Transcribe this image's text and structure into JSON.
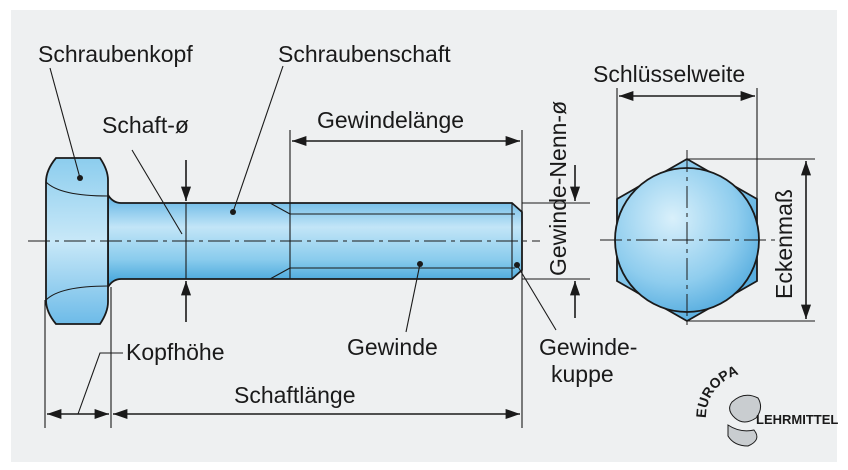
{
  "labels": {
    "schraubenkopf": "Schraubenkopf",
    "schraubenschaft": "Schraubenschaft",
    "schaft_d": "Schaft-ø",
    "gewindelaenge": "Gewindelänge",
    "gewinde_nenn_d": "Gewinde-Nenn-ø",
    "schluesselweite": "Schlüsselweite",
    "eckenmass": "Eckenmaß",
    "kopfhoehe": "Kopfhöhe",
    "gewinde": "Gewinde",
    "gewindekuppe_1": "Gewinde-",
    "gewindekuppe_2": "kuppe",
    "schaftlaenge": "Schaftlänge"
  },
  "logo": {
    "top": "EUROPA",
    "bottom": "LEHRMITTEL"
  },
  "colors": {
    "background": "#eef0f1",
    "steel_light": "#bfe3f6",
    "steel_mid": "#78c3ea",
    "steel_dark": "#3a9fd8",
    "ink": "#1a1a1a"
  }
}
